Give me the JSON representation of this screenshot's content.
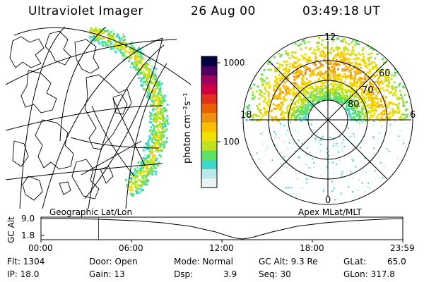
{
  "header": {
    "title": "Ultraviolet Imager",
    "date": "26 Aug 00",
    "time": "03:49:18 UT"
  },
  "colorbar": {
    "unit_label": "photon cm⁻²s⁻¹",
    "ticks": [
      "1000",
      "100"
    ],
    "colors": [
      "#e8f4f4",
      "#b8e8e8",
      "#40d8c8",
      "#60e060",
      "#c0e020",
      "#f0e000",
      "#f8c000",
      "#f09010",
      "#e86000",
      "#e03020",
      "#d00040",
      "#a00060",
      "#500060",
      "#000040"
    ]
  },
  "left_panel": {
    "caption": "Geographic Lat/Lon"
  },
  "right_panel": {
    "caption": "Apex MLat/MLT",
    "mlt_labels": {
      "top": "12",
      "left": "18",
      "right": "6",
      "bottom": "0"
    },
    "lat_labels": [
      "60",
      "70",
      "80"
    ]
  },
  "timeline": {
    "ylabel": "GC Alt",
    "yticks": [
      "9.0",
      "1.8"
    ],
    "xticks": [
      "00:00",
      "06:00",
      "12:00",
      "18:00",
      "23:59"
    ],
    "marker_hour": 3.82
  },
  "info": {
    "flt": "Flt: 1304",
    "ip": "IP: 18.0",
    "door": "Door: Open",
    "gain": "Gain: 13",
    "mode": "Mode: Normal",
    "dsp": "Dsp:",
    "dsp_val": "3.9",
    "gcalt": "GC Alt: 9.3 Re",
    "seq": "Seq: 30",
    "glat": "GLat:",
    "glat_val": "65.0",
    "glon": "GLon: 317.8"
  }
}
